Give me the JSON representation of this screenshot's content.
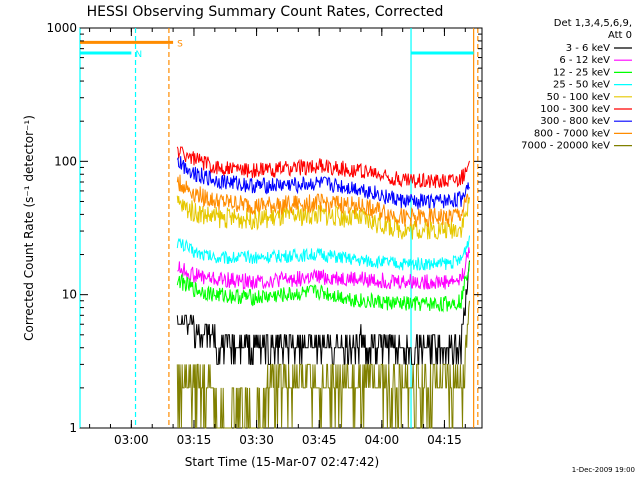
{
  "chart_data": {
    "type": "line",
    "title": "HESSI Observing Summary Count Rates, Corrected",
    "xlabel": "Start Time (15-Mar-07 02:47:42)",
    "ylabel": "Corrected Count Rate (s⁻¹ detector⁻¹)",
    "y_scale": "log",
    "ylim": [
      1,
      1000
    ],
    "xlim": [
      "02:47:42",
      "04:24:00"
    ],
    "x_ticks": [
      "03:00",
      "03:15",
      "03:30",
      "03:45",
      "04:00",
      "04:15"
    ],
    "y_ticks": [
      "1",
      "10",
      "100",
      "1000"
    ],
    "legend_header": [
      "Det 1,3,4,5,6,9,",
      "Att 0"
    ],
    "legend_position": "right",
    "timestamp": "1-Dec-2009 19:00",
    "data_start": "03:11",
    "data_end": "04:22",
    "series": [
      {
        "name": "3 - 6 keV",
        "color": "#000000",
        "x": [
          "03:11",
          "03:15",
          "03:20",
          "03:30",
          "03:45",
          "03:55",
          "04:05",
          "04:15",
          "04:19",
          "04:21"
        ],
        "values": [
          6.5,
          5.5,
          4.5,
          4.0,
          4.0,
          4.5,
          3.7,
          3.7,
          4.0,
          18
        ]
      },
      {
        "name": "6 - 12 keV",
        "color": "#ff00ff",
        "x": [
          "03:11",
          "03:15",
          "03:20",
          "03:30",
          "03:45",
          "03:55",
          "04:05",
          "04:15",
          "04:19",
          "04:21"
        ],
        "values": [
          16,
          14,
          13,
          12.5,
          13.5,
          13,
          12.5,
          12.5,
          13,
          22
        ]
      },
      {
        "name": "12 - 25 keV",
        "color": "#00ff00",
        "x": [
          "03:11",
          "03:15",
          "03:20",
          "03:30",
          "03:45",
          "03:55",
          "04:05",
          "04:15",
          "04:19",
          "04:21"
        ],
        "values": [
          13,
          11,
          10,
          9.5,
          10.5,
          9,
          8.5,
          8.5,
          9,
          18
        ]
      },
      {
        "name": "25 - 50 keV",
        "color": "#00ffff",
        "x": [
          "03:11",
          "03:15",
          "03:20",
          "03:30",
          "03:45",
          "03:55",
          "04:05",
          "04:15",
          "04:19",
          "04:21"
        ],
        "values": [
          25,
          21,
          19,
          19,
          20,
          18,
          17,
          17,
          18,
          27
        ]
      },
      {
        "name": "50 - 100 keV",
        "color": "#e6c800",
        "x": [
          "03:11",
          "03:15",
          "03:20",
          "03:30",
          "03:45",
          "03:55",
          "04:05",
          "04:15",
          "04:19",
          "04:21"
        ],
        "values": [
          48,
          42,
          38,
          37,
          40,
          37,
          31,
          31,
          32,
          48
        ]
      },
      {
        "name": "100 - 300 keV",
        "color": "#ff0000",
        "x": [
          "03:11",
          "03:15",
          "03:20",
          "03:30",
          "03:45",
          "03:55",
          "04:05",
          "04:15",
          "04:19",
          "04:21"
        ],
        "values": [
          120,
          105,
          90,
          85,
          92,
          85,
          72,
          72,
          75,
          88
        ]
      },
      {
        "name": "300 - 800 keV",
        "color": "#0000ff",
        "x": [
          "03:11",
          "03:15",
          "03:20",
          "03:30",
          "03:45",
          "03:55",
          "04:05",
          "04:15",
          "04:19",
          "04:21"
        ],
        "values": [
          100,
          82,
          72,
          65,
          68,
          62,
          50,
          50,
          52,
          70
        ]
      },
      {
        "name": "800 - 7000 keV",
        "color": "#ff8c00",
        "x": [
          "03:11",
          "03:15",
          "03:20",
          "03:30",
          "03:45",
          "03:55",
          "04:05",
          "04:15",
          "04:19",
          "04:21"
        ],
        "values": [
          70,
          58,
          50,
          46,
          49,
          46,
          38,
          38,
          40,
          55
        ]
      },
      {
        "name": "7000 - 20000 keV",
        "color": "#808000",
        "x": [
          "03:11",
          "03:15",
          "03:20",
          "03:30",
          "03:45",
          "03:55",
          "04:05",
          "04:15",
          "04:19",
          "04:21"
        ],
        "values": [
          2.5,
          2.0,
          1.5,
          1.4,
          2.2,
          2.0,
          1.8,
          1.6,
          1.8,
          8
        ]
      }
    ],
    "flags": [
      {
        "label": "N",
        "color": "#00ffff",
        "start_times": [
          "02:47:42",
          "04:07"
        ],
        "end_times": [
          "03:00",
          "04:22"
        ],
        "level": 650
      },
      {
        "label": "S",
        "color": "#ff8c00",
        "start_times": [
          "02:47:42"
        ],
        "end_times": [
          "03:10"
        ],
        "level": 780
      }
    ],
    "vertical_lines": [
      {
        "time": "02:47:42",
        "color": "#00ffff",
        "style": "solid"
      },
      {
        "time": "03:01",
        "color": "#00ffff",
        "style": "dashed"
      },
      {
        "time": "03:09",
        "color": "#ff8c00",
        "style": "dashed"
      },
      {
        "time": "04:07",
        "color": "#00ffff",
        "style": "solid"
      },
      {
        "time": "04:22",
        "color": "#ff8c00",
        "style": "solid"
      },
      {
        "time": "04:23",
        "color": "#ff8c00",
        "style": "dashed"
      }
    ]
  }
}
